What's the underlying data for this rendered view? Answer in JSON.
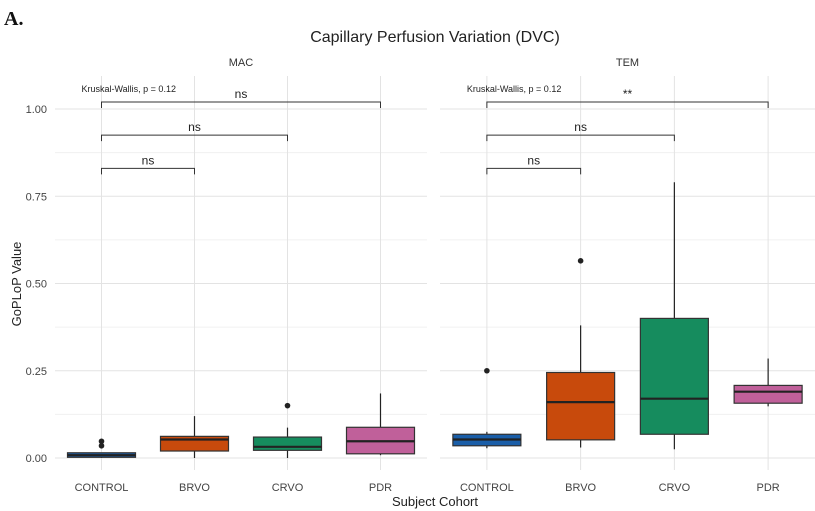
{
  "figure": {
    "panel_label": "A."
  },
  "chart_data": {
    "type": "box",
    "title": "Capillary Perfusion Variation (DVC)",
    "xlabel": "Subject Cohort",
    "ylabel": "GoPLoP Value",
    "ylim": [
      -0.03,
      1.08
    ],
    "yticks": [
      0,
      0.25,
      0.5,
      0.75,
      1.0
    ],
    "ytick_labels": [
      "0.00",
      "0.25",
      "0.50",
      "0.75",
      "1.00"
    ],
    "grid": true,
    "categories": [
      "CONTROL",
      "BRVO",
      "CRVO",
      "PDR"
    ],
    "colors": {
      "CONTROL": "#1a5ea8",
      "BRVO": "#c84a0c",
      "CRVO": "#168c5e",
      "PDR": "#c0609a"
    },
    "facets": [
      {
        "name": "MAC",
        "global_test": "Kruskal-Wallis, p = 0.12",
        "boxes": [
          {
            "category": "CONTROL",
            "whisker_low": 0.0,
            "q1": 0.002,
            "median": 0.008,
            "q3": 0.015,
            "whisker_high": 0.015,
            "outliers": [
              0.035,
              0.048
            ]
          },
          {
            "category": "BRVO",
            "whisker_low": 0.0,
            "q1": 0.02,
            "median": 0.053,
            "q3": 0.062,
            "whisker_high": 0.12,
            "outliers": []
          },
          {
            "category": "CRVO",
            "whisker_low": 0.0,
            "q1": 0.022,
            "median": 0.032,
            "q3": 0.06,
            "whisker_high": 0.087,
            "outliers": [
              0.15
            ]
          },
          {
            "category": "PDR",
            "whisker_low": 0.008,
            "q1": 0.012,
            "median": 0.048,
            "q3": 0.088,
            "whisker_high": 0.185,
            "outliers": []
          }
        ],
        "comparisons": [
          {
            "groups": [
              "CONTROL",
              "BRVO"
            ],
            "label": "ns",
            "y": 0.83
          },
          {
            "groups": [
              "CONTROL",
              "CRVO"
            ],
            "label": "ns",
            "y": 0.925
          },
          {
            "groups": [
              "CONTROL",
              "PDR"
            ],
            "label": "ns",
            "y": 1.02
          }
        ]
      },
      {
        "name": "TEM",
        "global_test": "Kruskal-Wallis, p = 0.12",
        "boxes": [
          {
            "category": "CONTROL",
            "whisker_low": 0.028,
            "q1": 0.035,
            "median": 0.053,
            "q3": 0.068,
            "whisker_high": 0.075,
            "outliers": [
              0.25
            ]
          },
          {
            "category": "BRVO",
            "whisker_low": 0.03,
            "q1": 0.052,
            "median": 0.16,
            "q3": 0.245,
            "whisker_high": 0.38,
            "outliers": [
              0.565
            ]
          },
          {
            "category": "CRVO",
            "whisker_low": 0.025,
            "q1": 0.068,
            "median": 0.17,
            "q3": 0.4,
            "whisker_high": 0.79,
            "outliers": []
          },
          {
            "category": "PDR",
            "whisker_low": 0.148,
            "q1": 0.157,
            "median": 0.19,
            "q3": 0.208,
            "whisker_high": 0.285,
            "outliers": []
          }
        ],
        "comparisons": [
          {
            "groups": [
              "CONTROL",
              "BRVO"
            ],
            "label": "ns",
            "y": 0.83
          },
          {
            "groups": [
              "CONTROL",
              "CRVO"
            ],
            "label": "ns",
            "y": 0.925
          },
          {
            "groups": [
              "CONTROL",
              "PDR"
            ],
            "label": "**",
            "y": 1.02
          }
        ]
      }
    ]
  }
}
